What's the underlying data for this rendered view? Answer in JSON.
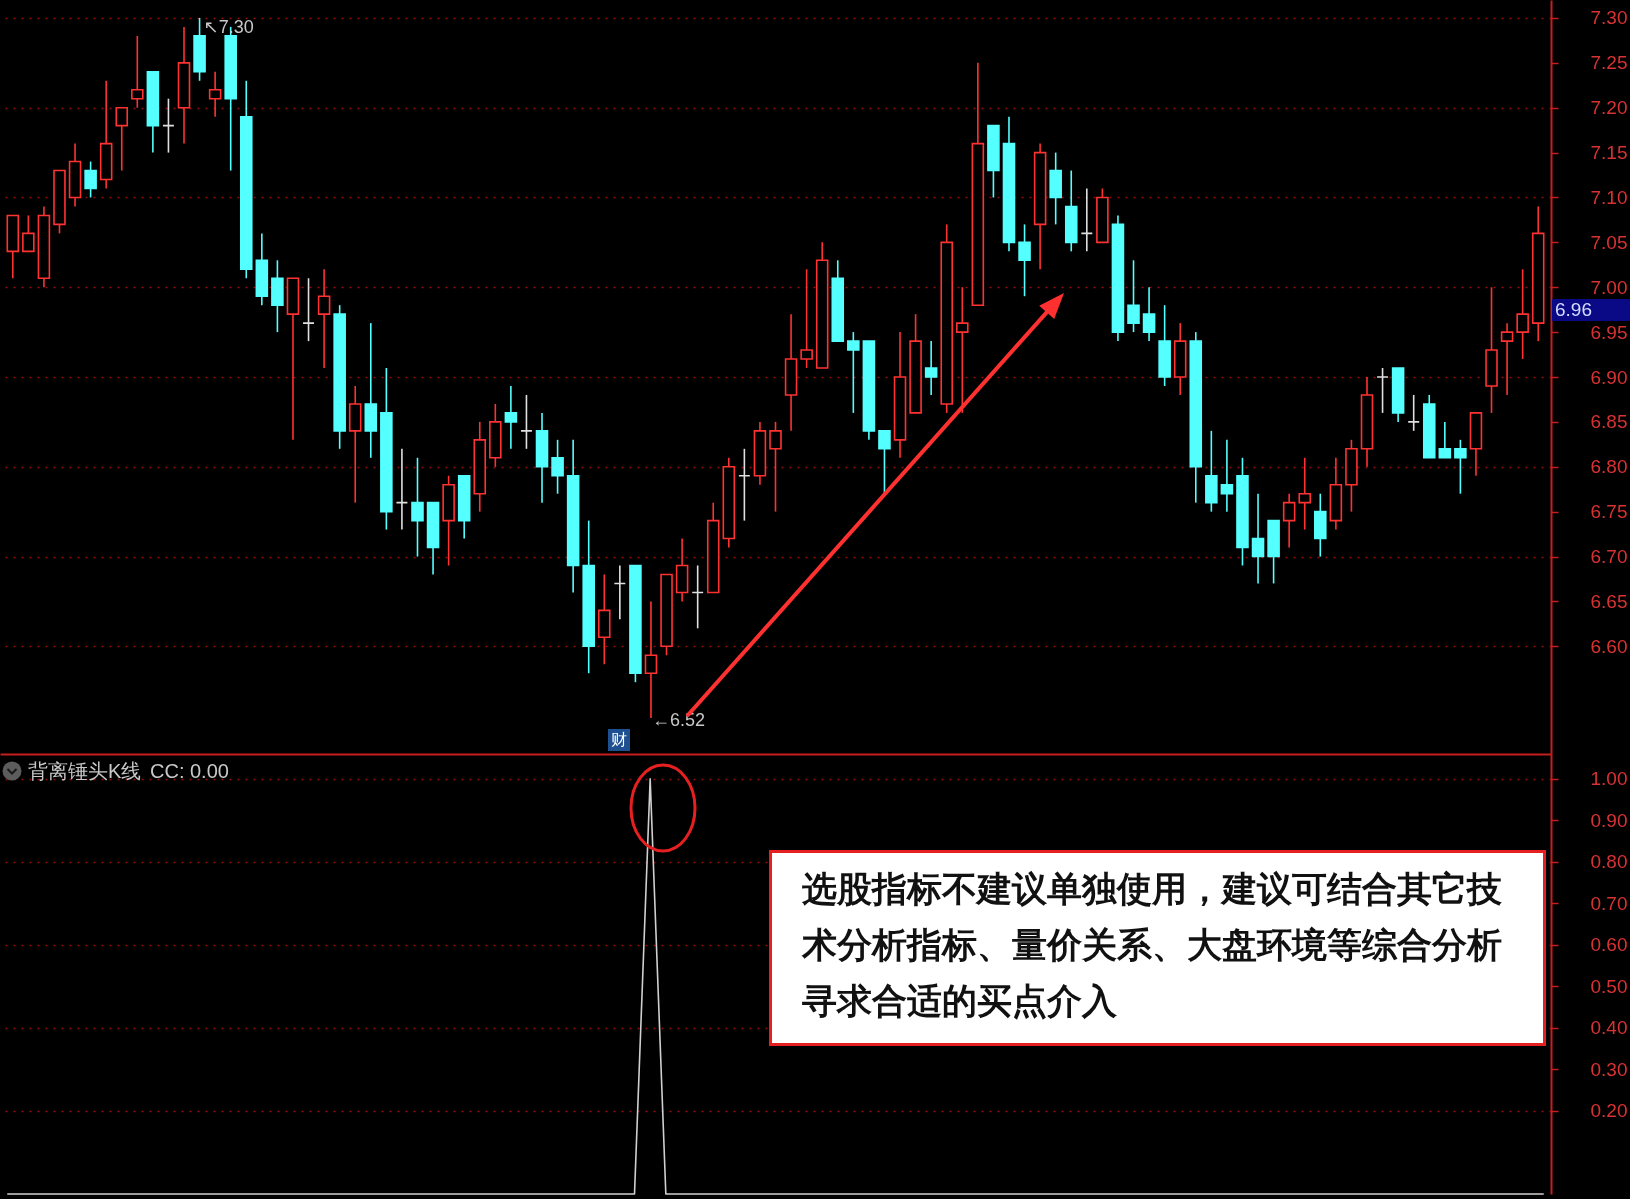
{
  "chart_data": [
    {
      "type": "candlestick",
      "categories": [
        null,
        null,
        null,
        null,
        null,
        null,
        null,
        null,
        null,
        null,
        null,
        null,
        null,
        null,
        null,
        null,
        null,
        null,
        null,
        null,
        null,
        null,
        null,
        null,
        null,
        null,
        null,
        null,
        null,
        null,
        null,
        null,
        null,
        null,
        null,
        null,
        null,
        null,
        null,
        null,
        null,
        null,
        null,
        null,
        null,
        null,
        null,
        null,
        null,
        null,
        null,
        null,
        null,
        null,
        null,
        null,
        null,
        null,
        null,
        null,
        null,
        null,
        null,
        null,
        null,
        null,
        null,
        null,
        null,
        null,
        null,
        null,
        null,
        null,
        null,
        null,
        null,
        null,
        null,
        null,
        null,
        null,
        null,
        null,
        null,
        null,
        null,
        null,
        null,
        null,
        null,
        null,
        null,
        null,
        null,
        null,
        null,
        null,
        null
      ],
      "ohlc": [
        [
          7.04,
          7.08,
          7.01,
          7.08
        ],
        [
          7.04,
          7.08,
          7.04,
          7.06
        ],
        [
          7.01,
          7.09,
          7.0,
          7.08
        ],
        [
          7.07,
          7.13,
          7.06,
          7.13
        ],
        [
          7.1,
          7.16,
          7.09,
          7.14
        ],
        [
          7.13,
          7.14,
          7.1,
          7.11
        ],
        [
          7.12,
          7.23,
          7.11,
          7.16
        ],
        [
          7.18,
          7.2,
          7.13,
          7.2
        ],
        [
          7.21,
          7.28,
          7.2,
          7.22
        ],
        [
          7.24,
          7.24,
          7.15,
          7.18
        ],
        [
          7.18,
          7.21,
          7.15,
          7.18
        ],
        [
          7.2,
          7.29,
          7.16,
          7.25
        ],
        [
          7.28,
          7.3,
          7.23,
          7.24
        ],
        [
          7.21,
          7.24,
          7.19,
          7.22
        ],
        [
          7.28,
          7.29,
          7.13,
          7.21
        ],
        [
          7.19,
          7.23,
          7.01,
          7.02
        ],
        [
          7.03,
          7.06,
          6.98,
          6.99
        ],
        [
          7.01,
          7.03,
          6.95,
          6.98
        ],
        [
          6.97,
          7.01,
          6.83,
          7.01
        ],
        [
          6.96,
          7.01,
          6.94,
          6.96
        ],
        [
          6.97,
          7.02,
          6.91,
          6.99
        ],
        [
          6.97,
          6.98,
          6.82,
          6.84
        ],
        [
          6.84,
          6.89,
          6.76,
          6.87
        ],
        [
          6.87,
          6.96,
          6.81,
          6.84
        ],
        [
          6.86,
          6.91,
          6.73,
          6.75
        ],
        [
          6.76,
          6.82,
          6.73,
          6.76
        ],
        [
          6.76,
          6.81,
          6.7,
          6.74
        ],
        [
          6.76,
          6.76,
          6.68,
          6.71
        ],
        [
          6.74,
          6.79,
          6.69,
          6.78
        ],
        [
          6.79,
          6.79,
          6.72,
          6.74
        ],
        [
          6.77,
          6.85,
          6.75,
          6.83
        ],
        [
          6.81,
          6.87,
          6.8,
          6.85
        ],
        [
          6.86,
          6.89,
          6.82,
          6.85
        ],
        [
          6.84,
          6.88,
          6.82,
          6.84
        ],
        [
          6.84,
          6.86,
          6.76,
          6.8
        ],
        [
          6.81,
          6.83,
          6.77,
          6.79
        ],
        [
          6.79,
          6.83,
          6.66,
          6.69
        ],
        [
          6.69,
          6.74,
          6.57,
          6.6
        ],
        [
          6.61,
          6.68,
          6.58,
          6.64
        ],
        [
          6.67,
          6.69,
          6.63,
          6.67
        ],
        [
          6.69,
          6.69,
          6.56,
          6.57
        ],
        [
          6.57,
          6.65,
          6.52,
          6.59
        ],
        [
          6.6,
          6.68,
          6.59,
          6.68
        ],
        [
          6.66,
          6.72,
          6.65,
          6.69
        ],
        [
          6.66,
          6.69,
          6.62,
          6.66
        ],
        [
          6.66,
          6.76,
          6.66,
          6.74
        ],
        [
          6.72,
          6.81,
          6.71,
          6.8
        ],
        [
          6.79,
          6.82,
          6.74,
          6.79
        ],
        [
          6.79,
          6.85,
          6.78,
          6.84
        ],
        [
          6.82,
          6.85,
          6.75,
          6.84
        ],
        [
          6.88,
          6.97,
          6.84,
          6.92
        ],
        [
          6.92,
          7.02,
          6.91,
          6.93
        ],
        [
          6.91,
          7.05,
          6.91,
          7.03
        ],
        [
          7.01,
          7.03,
          6.94,
          6.94
        ],
        [
          6.94,
          6.95,
          6.86,
          6.93
        ],
        [
          6.94,
          6.94,
          6.83,
          6.84
        ],
        [
          6.84,
          6.84,
          6.77,
          6.82
        ],
        [
          6.83,
          6.95,
          6.81,
          6.9
        ],
        [
          6.86,
          6.97,
          6.86,
          6.94
        ],
        [
          6.91,
          6.94,
          6.88,
          6.9
        ],
        [
          6.87,
          7.07,
          6.86,
          7.05
        ],
        [
          6.95,
          7.0,
          6.86,
          6.96
        ],
        [
          6.98,
          7.25,
          6.98,
          7.16
        ],
        [
          7.18,
          7.18,
          7.1,
          7.13
        ],
        [
          7.16,
          7.19,
          7.04,
          7.05
        ],
        [
          7.05,
          7.07,
          6.99,
          7.03
        ],
        [
          7.07,
          7.16,
          7.02,
          7.15
        ],
        [
          7.13,
          7.15,
          7.07,
          7.1
        ],
        [
          7.09,
          7.13,
          7.04,
          7.05
        ],
        [
          7.06,
          7.11,
          7.04,
          7.06
        ],
        [
          7.05,
          7.11,
          7.05,
          7.1
        ],
        [
          7.07,
          7.08,
          6.94,
          6.95
        ],
        [
          6.98,
          7.03,
          6.95,
          6.96
        ],
        [
          6.97,
          7.0,
          6.94,
          6.95
        ],
        [
          6.94,
          6.98,
          6.89,
          6.9
        ],
        [
          6.9,
          6.96,
          6.88,
          6.94
        ],
        [
          6.94,
          6.95,
          6.76,
          6.8
        ],
        [
          6.79,
          6.84,
          6.75,
          6.76
        ],
        [
          6.78,
          6.83,
          6.75,
          6.77
        ],
        [
          6.79,
          6.81,
          6.69,
          6.71
        ],
        [
          6.72,
          6.77,
          6.67,
          6.7
        ],
        [
          6.74,
          6.74,
          6.67,
          6.7
        ],
        [
          6.74,
          6.77,
          6.71,
          6.76
        ],
        [
          6.76,
          6.81,
          6.73,
          6.77
        ],
        [
          6.75,
          6.77,
          6.7,
          6.72
        ],
        [
          6.74,
          6.81,
          6.73,
          6.78
        ],
        [
          6.78,
          6.83,
          6.75,
          6.82
        ],
        [
          6.82,
          6.9,
          6.8,
          6.88
        ],
        [
          6.9,
          6.91,
          6.86,
          6.9
        ],
        [
          6.91,
          6.91,
          6.85,
          6.86
        ],
        [
          6.85,
          6.88,
          6.84,
          6.85
        ],
        [
          6.87,
          6.88,
          6.81,
          6.81
        ],
        [
          6.82,
          6.85,
          6.81,
          6.81
        ],
        [
          6.82,
          6.83,
          6.77,
          6.81
        ],
        [
          6.82,
          6.86,
          6.79,
          6.86
        ],
        [
          6.89,
          7.0,
          6.86,
          6.93
        ],
        [
          6.94,
          6.96,
          6.88,
          6.95
        ],
        [
          6.95,
          7.02,
          6.92,
          6.97
        ],
        [
          6.96,
          7.09,
          6.94,
          7.06
        ]
      ],
      "colors": [
        "#ff3232",
        "#ff3232",
        "#ff3232",
        "#ff3232",
        "#ff3232",
        "#54ffff",
        "#ff3232",
        "#ff3232",
        "#ff3232",
        "#54ffff",
        "#e0e0e0",
        "#ff3232",
        "#54ffff",
        "#ff3232",
        "#54ffff",
        "#54ffff",
        "#54ffff",
        "#54ffff",
        "#ff3232",
        "#e0e0e0",
        "#ff3232",
        "#54ffff",
        "#ff3232",
        "#54ffff",
        "#54ffff",
        "#e0e0e0",
        "#54ffff",
        "#54ffff",
        "#ff3232",
        "#54ffff",
        "#ff3232",
        "#ff3232",
        "#54ffff",
        "#e0e0e0",
        "#54ffff",
        "#54ffff",
        "#54ffff",
        "#54ffff",
        "#ff3232",
        "#e0e0e0",
        "#54ffff",
        "#ff3232",
        "#ff3232",
        "#ff3232",
        "#e0e0e0",
        "#ff3232",
        "#ff3232",
        "#e0e0e0",
        "#ff3232",
        "#ff3232",
        "#ff3232",
        "#ff3232",
        "#ff3232",
        "#54ffff",
        "#54ffff",
        "#54ffff",
        "#54ffff",
        "#ff3232",
        "#ff3232",
        "#54ffff",
        "#ff3232",
        "#ff3232",
        "#ff3232",
        "#54ffff",
        "#54ffff",
        "#54ffff",
        "#ff3232",
        "#54ffff",
        "#54ffff",
        "#e0e0e0",
        "#ff3232",
        "#54ffff",
        "#54ffff",
        "#54ffff",
        "#54ffff",
        "#ff3232",
        "#54ffff",
        "#54ffff",
        "#54ffff",
        "#54ffff",
        "#54ffff",
        "#54ffff",
        "#ff3232",
        "#ff3232",
        "#54ffff",
        "#ff3232",
        "#ff3232",
        "#ff3232",
        "#e0e0e0",
        "#54ffff",
        "#e0e0e0",
        "#54ffff",
        "#54ffff",
        "#54ffff",
        "#ff3232",
        "#ff3232",
        "#ff3232",
        "#ff3232",
        "#ff3232"
      ],
      "ylim": [
        6.48,
        7.32
      ],
      "yticks": [
        {
          "value": 6.6,
          "label": "6.60"
        },
        6.65,
        {
          "value": 6.7,
          "label": "6.70"
        },
        6.75,
        {
          "value": 6.8,
          "label": "6.80"
        },
        6.85,
        {
          "value": 6.9,
          "label": "6.90"
        },
        6.95,
        {
          "value": 7,
          "label": "7.00"
        },
        7.05,
        {
          "value": 7.1,
          "label": "7.10"
        },
        7.15,
        {
          "value": 7.2,
          "label": "7.20"
        },
        7.25,
        {
          "value": 7.3,
          "label": "7.30"
        }
      ],
      "grid": "y",
      "annotations": [
        "↖7.30",
        "←6.52",
        "6.96",
        "财"
      ]
    },
    {
      "type": "line",
      "title": "背离锤头K线",
      "categories": [
        null,
        null,
        null,
        null,
        null,
        null,
        null,
        null,
        null,
        null,
        null,
        null,
        null,
        null,
        null,
        null,
        null,
        null,
        null,
        null,
        null,
        null,
        null,
        null,
        null,
        null,
        null,
        null,
        null,
        null,
        null,
        null,
        null,
        null,
        null,
        null,
        null,
        null,
        null,
        null,
        null,
        null,
        null,
        null,
        null,
        null,
        null,
        null,
        null,
        null,
        null,
        null,
        null,
        null,
        null,
        null,
        null,
        null,
        null,
        null,
        null,
        null,
        null,
        null,
        null,
        null,
        null,
        null,
        null,
        null,
        null,
        null,
        null,
        null,
        null,
        null,
        null,
        null,
        null,
        null,
        null,
        null,
        null,
        null,
        null,
        null,
        null,
        null,
        null,
        null,
        null,
        null,
        null,
        null,
        null,
        null,
        null,
        null,
        null
      ],
      "series": [
        {
          "color": "#d0d0d0",
          "values": [
            0,
            0,
            0,
            0,
            0,
            0,
            0,
            0,
            0,
            0,
            0,
            0,
            0,
            0,
            0,
            0,
            0,
            0,
            0,
            0,
            0,
            0,
            0,
            0,
            0,
            0,
            0,
            0,
            0,
            0,
            0,
            0,
            0,
            0,
            0,
            0,
            0,
            0,
            0,
            0,
            0,
            1,
            0,
            0,
            0,
            0,
            0,
            0,
            0,
            0,
            0,
            0,
            0,
            0,
            0,
            0,
            0,
            0,
            0,
            0,
            0,
            0,
            0,
            0,
            0,
            0,
            0,
            0,
            0,
            0,
            0,
            0,
            0,
            0,
            0,
            0,
            0,
            0,
            0,
            0,
            0,
            0,
            0,
            0,
            0,
            0,
            0,
            0,
            0,
            0,
            0,
            0,
            0,
            0,
            0,
            0,
            0,
            0,
            0
          ]
        }
      ],
      "ylim": [
        0,
        1.06
      ],
      "yticks": [
        {
          "value": 0.2,
          "label": "0.20"
        },
        {
          "value": 0.3,
          "label": "0.30"
        },
        {
          "value": 0.4,
          "label": "0.40"
        },
        {
          "value": 0.5,
          "label": "0.50"
        },
        {
          "value": 0.6,
          "label": "0.60"
        },
        {
          "value": 0.7,
          "label": "0.70"
        },
        {
          "value": 0.8,
          "label": "0.80"
        },
        {
          "value": 0.9,
          "label": "0.90"
        },
        {
          "value": 1,
          "label": "1.00"
        }
      ],
      "grid": "y",
      "annotations": [
        "CC: 0.00",
        "选股指标不建议单独使用，建议可结合其它技术分析指标、量价关系、大盘环境等综合分析寻求合适的买点介入"
      ]
    }
  ]
}
